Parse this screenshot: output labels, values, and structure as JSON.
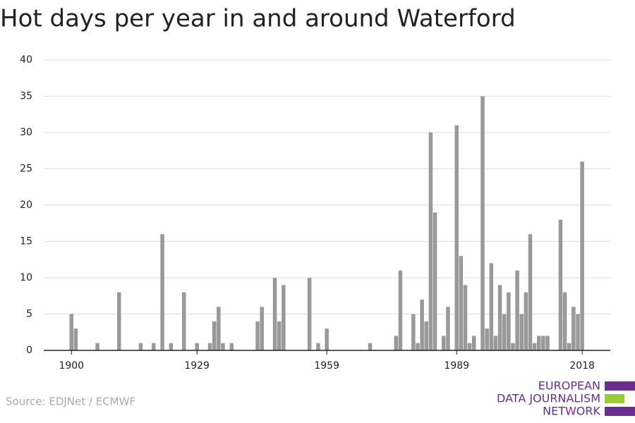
{
  "chart_data": {
    "type": "bar",
    "title": "Hot days per year in and around Waterford",
    "source": "Source: EDJNet / ECMWF",
    "logo": [
      "EUROPEAN",
      "DATA JOURNALISM",
      "NETWORK"
    ],
    "x": [
      1900,
      1901,
      1906,
      1911,
      1916,
      1919,
      1921,
      1923,
      1926,
      1929,
      1932,
      1933,
      1934,
      1935,
      1937,
      1943,
      1944,
      1947,
      1948,
      1949,
      1955,
      1957,
      1959,
      1969,
      1975,
      1976,
      1979,
      1980,
      1981,
      1982,
      1983,
      1984,
      1986,
      1987,
      1989,
      1990,
      1991,
      1992,
      1993,
      1995,
      1996,
      1997,
      1998,
      1999,
      2000,
      2001,
      2002,
      2003,
      2004,
      2005,
      2006,
      2007,
      2008,
      2009,
      2010,
      2013,
      2014,
      2015,
      2016,
      2017,
      2018
    ],
    "values": [
      5,
      3,
      1,
      8,
      1,
      1,
      16,
      1,
      8,
      1,
      1,
      4,
      6,
      1,
      1,
      4,
      6,
      10,
      4,
      9,
      10,
      1,
      3,
      1,
      2,
      11,
      5,
      1,
      7,
      4,
      30,
      19,
      2,
      6,
      31,
      13,
      9,
      1,
      2,
      35,
      3,
      12,
      2,
      9,
      5,
      8,
      1,
      11,
      5,
      8,
      16,
      1,
      2,
      2,
      2,
      18,
      8,
      1,
      6,
      5,
      26
    ],
    "color": "#999999",
    "xlim": [
      1893.6,
      2024.5
    ],
    "xticks": [
      1900,
      1929,
      1959,
      1989,
      2018
    ],
    "ylim": [
      0,
      40
    ],
    "yticks": [
      0,
      5,
      10,
      15,
      20,
      25,
      30,
      35,
      40
    ],
    "grid": true
  }
}
